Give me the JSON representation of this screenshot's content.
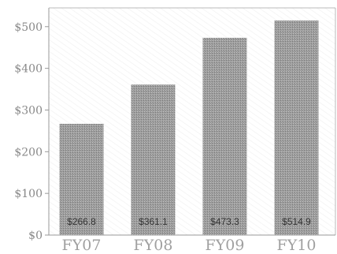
{
  "chart_data": {
    "type": "bar",
    "title": "",
    "xlabel": "",
    "ylabel": "",
    "categories": [
      "FY07",
      "FY08",
      "FY09",
      "FY10"
    ],
    "values": [
      266.8,
      361.1,
      473.3,
      514.9
    ],
    "data_labels": [
      "$266.8",
      "$361.1",
      "$473.3",
      "$514.9"
    ],
    "y_ticks": [
      0,
      100,
      200,
      300,
      400,
      500
    ],
    "y_tick_labels": [
      "$0",
      "$100",
      "$200",
      "$300",
      "$400",
      "$500"
    ],
    "ylim": [
      0,
      545
    ],
    "grid": false,
    "legend": "none",
    "colors": {
      "bar": "#9a9a9a",
      "axis": "#999999",
      "plot_frame": "#bbbbbb"
    }
  }
}
